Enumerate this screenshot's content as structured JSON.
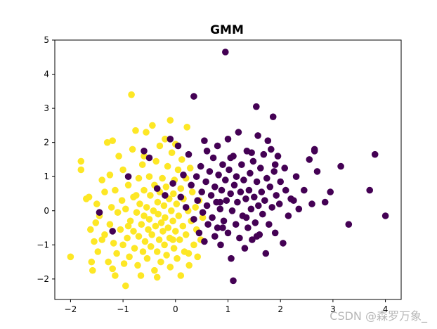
{
  "chart_data": {
    "type": "scatter",
    "title": "GMM",
    "xlabel": "",
    "ylabel": "",
    "xlim": [
      -2.3,
      4.3
    ],
    "ylim": [
      -2.6,
      5.0
    ],
    "xticks": [
      -2,
      -1,
      0,
      1,
      2,
      3,
      4
    ],
    "yticks": [
      -2,
      -1,
      0,
      1,
      2,
      3,
      4,
      5
    ],
    "grid": false,
    "legend": "none",
    "series": [
      {
        "color": "#fde725",
        "points": [
          [
            -2.0,
            -1.35
          ],
          [
            -1.8,
            1.45
          ],
          [
            -1.8,
            1.2
          ],
          [
            -1.7,
            0.35
          ],
          [
            -1.65,
            0.4
          ],
          [
            -1.62,
            -0.55
          ],
          [
            -1.6,
            -1.5
          ],
          [
            -1.58,
            -1.75
          ],
          [
            -1.55,
            -0.9
          ],
          [
            -1.52,
            -0.35
          ],
          [
            -1.5,
            0.2
          ],
          [
            -1.48,
            -1.2
          ],
          [
            -1.45,
            -0.15
          ],
          [
            -1.4,
            0.9
          ],
          [
            -1.35,
            -0.7
          ],
          [
            -1.35,
            0.55
          ],
          [
            -1.3,
            2.0
          ],
          [
            -1.28,
            -1.5
          ],
          [
            -1.25,
            -0.4
          ],
          [
            -1.22,
            0.1
          ],
          [
            -1.2,
            -1.7
          ],
          [
            -1.2,
            2.05
          ],
          [
            -1.18,
            -0.95
          ],
          [
            -1.15,
            0.6
          ],
          [
            -1.12,
            -1.25
          ],
          [
            -1.1,
            -0.05
          ],
          [
            -1.08,
            1.6
          ],
          [
            -1.05,
            -0.55
          ],
          [
            -1.02,
            0.3
          ],
          [
            -1.0,
            -1.0
          ],
          [
            -1.0,
            1.2
          ],
          [
            -0.98,
            -1.55
          ],
          [
            -0.95,
            -2.2
          ],
          [
            -0.95,
            0.05
          ],
          [
            -0.92,
            -0.8
          ],
          [
            -0.9,
            0.75
          ],
          [
            -0.88,
            -1.35
          ],
          [
            -0.86,
            -0.3
          ],
          [
            -0.84,
            3.4
          ],
          [
            -0.82,
            1.8
          ],
          [
            -0.8,
            -0.6
          ],
          [
            -0.8,
            0.4
          ],
          [
            -0.78,
            -1.1
          ],
          [
            -0.76,
            2.35
          ],
          [
            -0.74,
            -0.05
          ],
          [
            -0.72,
            -1.6
          ],
          [
            -0.7,
            0.95
          ],
          [
            -0.7,
            -0.75
          ],
          [
            -0.68,
            0.2
          ],
          [
            -0.66,
            -1.9
          ],
          [
            -0.65,
            -0.4
          ],
          [
            -0.63,
            1.35
          ],
          [
            -0.62,
            -1.2
          ],
          [
            -0.6,
            0.6
          ],
          [
            -0.6,
            -0.15
          ],
          [
            -0.58,
            -0.9
          ],
          [
            -0.56,
            2.3
          ],
          [
            -0.55,
            0.1
          ],
          [
            -0.54,
            -1.4
          ],
          [
            -0.52,
            -0.55
          ],
          [
            -0.5,
            1.0
          ],
          [
            -0.5,
            -0.25
          ],
          [
            -0.48,
            0.45
          ],
          [
            -0.47,
            -1.05
          ],
          [
            -0.45,
            -0.7
          ],
          [
            -0.44,
            2.5
          ],
          [
            -0.42,
            0.0
          ],
          [
            -0.4,
            -1.75
          ],
          [
            -0.4,
            0.75
          ],
          [
            -0.38,
            -0.45
          ],
          [
            -0.37,
            1.45
          ],
          [
            -0.35,
            -1.2
          ],
          [
            -0.34,
            0.25
          ],
          [
            -0.33,
            -0.1
          ],
          [
            -0.31,
            -0.85
          ],
          [
            -0.3,
            1.9
          ],
          [
            -0.3,
            0.55
          ],
          [
            -0.28,
            -1.5
          ],
          [
            -0.27,
            -0.35
          ],
          [
            -0.25,
            0.95
          ],
          [
            -0.24,
            -0.6
          ],
          [
            -0.22,
            0.15
          ],
          [
            -0.21,
            -1.0
          ],
          [
            -0.2,
            2.1
          ],
          [
            -0.2,
            -0.2
          ],
          [
            -0.18,
            0.7
          ],
          [
            -0.17,
            -1.3
          ],
          [
            -0.15,
            1.3
          ],
          [
            -0.14,
            -0.5
          ],
          [
            -0.12,
            0.35
          ],
          [
            -0.11,
            -0.8
          ],
          [
            -0.1,
            -1.65
          ],
          [
            -0.1,
            2.65
          ],
          [
            -0.08,
            0.0
          ],
          [
            -0.07,
            1.7
          ],
          [
            -0.05,
            -0.3
          ],
          [
            -0.04,
            0.5
          ],
          [
            -0.03,
            -1.1
          ],
          [
            -0.02,
            0.9
          ],
          [
            0.0,
            -0.6
          ],
          [
            0.0,
            1.95
          ],
          [
            0.02,
            0.2
          ],
          [
            0.03,
            -1.4
          ],
          [
            0.05,
            1.2
          ],
          [
            0.06,
            -0.15
          ],
          [
            0.08,
            -0.85
          ],
          [
            0.1,
            0.65
          ],
          [
            0.1,
            -1.9
          ],
          [
            0.12,
            1.5
          ],
          [
            0.14,
            -0.45
          ],
          [
            0.15,
            0.35
          ],
          [
            0.17,
            -1.2
          ],
          [
            0.2,
            0.95
          ],
          [
            0.2,
            -0.7
          ],
          [
            0.22,
            2.45
          ],
          [
            0.24,
            0.0
          ],
          [
            0.26,
            -1.6
          ],
          [
            0.28,
            1.25
          ],
          [
            0.3,
            -0.3
          ],
          [
            0.32,
            0.55
          ],
          [
            0.35,
            -1.0
          ],
          [
            0.38,
            0.1
          ],
          [
            0.4,
            -0.55
          ],
          [
            0.42,
            -1.35
          ],
          [
            0.45,
            0.3
          ],
          [
            0.48,
            -0.85
          ],
          [
            0.52,
            -0.2
          ],
          [
            -1.4,
            -0.85
          ],
          [
            -1.25,
            1.05
          ],
          [
            -0.9,
            -0.45
          ],
          [
            -0.6,
            1.6
          ],
          [
            -0.35,
            -1.95
          ],
          [
            -0.05,
            -0.85
          ],
          [
            0.25,
            -1.25
          ],
          [
            -1.15,
            -1.9
          ],
          [
            -0.75,
            0.45
          ]
        ]
      },
      {
        "color": "#440154",
        "points": [
          [
            -1.45,
            -0.05
          ],
          [
            -1.2,
            -0.6
          ],
          [
            -0.9,
            1.0
          ],
          [
            -0.6,
            1.75
          ],
          [
            -0.5,
            1.55
          ],
          [
            -0.35,
            0.65
          ],
          [
            -0.2,
            0.45
          ],
          [
            -0.1,
            2.1
          ],
          [
            -0.05,
            0.8
          ],
          [
            0.05,
            1.9
          ],
          [
            0.1,
            0.4
          ],
          [
            0.15,
            1.05
          ],
          [
            0.2,
            0.1
          ],
          [
            0.25,
            1.65
          ],
          [
            0.3,
            0.75
          ],
          [
            0.35,
            3.35
          ],
          [
            0.35,
            -0.25
          ],
          [
            0.4,
            1.0
          ],
          [
            0.42,
            0.3
          ],
          [
            0.45,
            -0.65
          ],
          [
            0.48,
            1.3
          ],
          [
            0.5,
            0.55
          ],
          [
            0.52,
            -0.05
          ],
          [
            0.55,
            2.05
          ],
          [
            0.55,
            -0.9
          ],
          [
            0.58,
            0.85
          ],
          [
            0.6,
            0.15
          ],
          [
            0.62,
            -0.4
          ],
          [
            0.65,
            1.15
          ],
          [
            0.68,
            0.45
          ],
          [
            0.7,
            -0.2
          ],
          [
            0.72,
            1.55
          ],
          [
            0.75,
            0.7
          ],
          [
            0.75,
            -0.75
          ],
          [
            0.78,
            0.25
          ],
          [
            0.8,
            1.9
          ],
          [
            0.8,
            -0.5
          ],
          [
            0.82,
            1.05
          ],
          [
            0.85,
            0.05
          ],
          [
            0.86,
            -1.0
          ],
          [
            0.88,
            0.6
          ],
          [
            0.9,
            1.35
          ],
          [
            0.92,
            -0.3
          ],
          [
            0.95,
            4.65
          ],
          [
            0.95,
            0.9
          ],
          [
            0.97,
            0.3
          ],
          [
            1.0,
            -0.65
          ],
          [
            1.0,
            2.1
          ],
          [
            1.02,
            1.2
          ],
          [
            1.05,
            0.5
          ],
          [
            1.06,
            -1.4
          ],
          [
            1.08,
            0.0
          ],
          [
            1.1,
            1.6
          ],
          [
            1.1,
            -2.05
          ],
          [
            1.12,
            0.75
          ],
          [
            1.15,
            -0.4
          ],
          [
            1.16,
            1.0
          ],
          [
            1.18,
            0.25
          ],
          [
            1.2,
            2.3
          ],
          [
            1.22,
            -0.8
          ],
          [
            1.24,
            0.55
          ],
          [
            1.26,
            1.35
          ],
          [
            1.28,
            -0.15
          ],
          [
            1.3,
            0.9
          ],
          [
            1.32,
            -1.1
          ],
          [
            1.34,
            0.35
          ],
          [
            1.36,
            1.75
          ],
          [
            1.38,
            -0.5
          ],
          [
            1.4,
            0.6
          ],
          [
            1.42,
            1.1
          ],
          [
            1.44,
            0.05
          ],
          [
            1.46,
            -0.85
          ],
          [
            1.48,
            1.45
          ],
          [
            1.5,
            0.4
          ],
          [
            1.52,
            -0.35
          ],
          [
            1.54,
            3.05
          ],
          [
            1.55,
            0.85
          ],
          [
            1.57,
            2.2
          ],
          [
            1.58,
            0.15
          ],
          [
            1.6,
            -0.7
          ],
          [
            1.62,
            1.25
          ],
          [
            1.64,
            0.55
          ],
          [
            1.66,
            -0.1
          ],
          [
            1.68,
            1.65
          ],
          [
            1.7,
            0.3
          ],
          [
            1.72,
            -1.25
          ],
          [
            1.74,
            0.95
          ],
          [
            1.76,
            2.05
          ],
          [
            1.78,
            -0.4
          ],
          [
            1.8,
            0.7
          ],
          [
            1.82,
            1.8
          ],
          [
            1.84,
            0.1
          ],
          [
            1.86,
            2.75
          ],
          [
            1.88,
            1.15
          ],
          [
            1.9,
            -0.65
          ],
          [
            1.92,
            0.45
          ],
          [
            1.95,
            1.6
          ],
          [
            1.98,
            0.2
          ],
          [
            2.0,
            0.85
          ],
          [
            2.05,
            -0.95
          ],
          [
            2.08,
            1.25
          ],
          [
            2.1,
            0.6
          ],
          [
            2.15,
            -0.15
          ],
          [
            2.2,
            0.35
          ],
          [
            2.3,
            1.0
          ],
          [
            2.35,
            0.05
          ],
          [
            2.45,
            0.6
          ],
          [
            2.55,
            1.5
          ],
          [
            2.6,
            0.2
          ],
          [
            2.65,
            1.75
          ],
          [
            2.7,
            1.15
          ],
          [
            2.85,
            0.25
          ],
          [
            2.95,
            0.55
          ],
          [
            3.15,
            1.3
          ],
          [
            3.3,
            -0.4
          ],
          [
            3.7,
            0.6
          ],
          [
            3.8,
            1.65
          ],
          [
            4.0,
            -0.15
          ],
          [
            0.6,
            1.75
          ],
          [
            1.45,
            1.7
          ],
          [
            1.9,
            1.35
          ],
          [
            2.25,
            0.3
          ],
          [
            2.65,
            1.8
          ],
          [
            0.85,
            0.25
          ],
          [
            1.35,
            -0.2
          ],
          [
            0.9,
            -0.5
          ],
          [
            1.55,
            -0.75
          ],
          [
            1.05,
            1.55
          ]
        ]
      }
    ]
  },
  "watermark": "CSDN @森罗万象_"
}
